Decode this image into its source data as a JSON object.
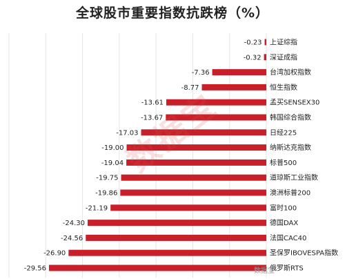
{
  "chart_data": {
    "type": "bar",
    "orientation": "horizontal",
    "title": "全球股市重要指数抗跌榜（%）",
    "categories": [
      "上证综指",
      "深证成指",
      "台湾加权指数",
      "恒生指数",
      "孟买SENSEX30",
      "韩国综合指数",
      "日经225",
      "纳斯达克指数",
      "标普500",
      "道琼斯工业指数",
      "澳洲标普200",
      "富时100",
      "德国DAX",
      "法国CAC40",
      "圣保罗IBOVESPA指数",
      "俄罗斯RTS"
    ],
    "values": [
      -0.23,
      -0.32,
      -7.36,
      -8.77,
      -13.61,
      -13.67,
      -17.03,
      -19.0,
      -19.04,
      -19.75,
      -19.86,
      -21.19,
      -24.3,
      -24.56,
      -26.9,
      -29.56
    ],
    "value_labels": [
      "-0.23",
      "-0.32",
      "-7.36",
      "-8.77",
      "-13.61",
      "-13.67",
      "-17.03",
      "-19.00",
      "-19.04",
      "-19.75",
      "-19.86",
      "-21.19",
      "-24.30",
      "-24.56",
      "-26.90",
      "-29.56"
    ],
    "xlim": [
      -35,
      0
    ],
    "grid": true,
    "colors": {
      "bar": "#c8202a",
      "grid": "#e4e4e4",
      "text": "#222222"
    }
  },
  "watermark": "数据宝",
  "corner_mark": "数据宝"
}
